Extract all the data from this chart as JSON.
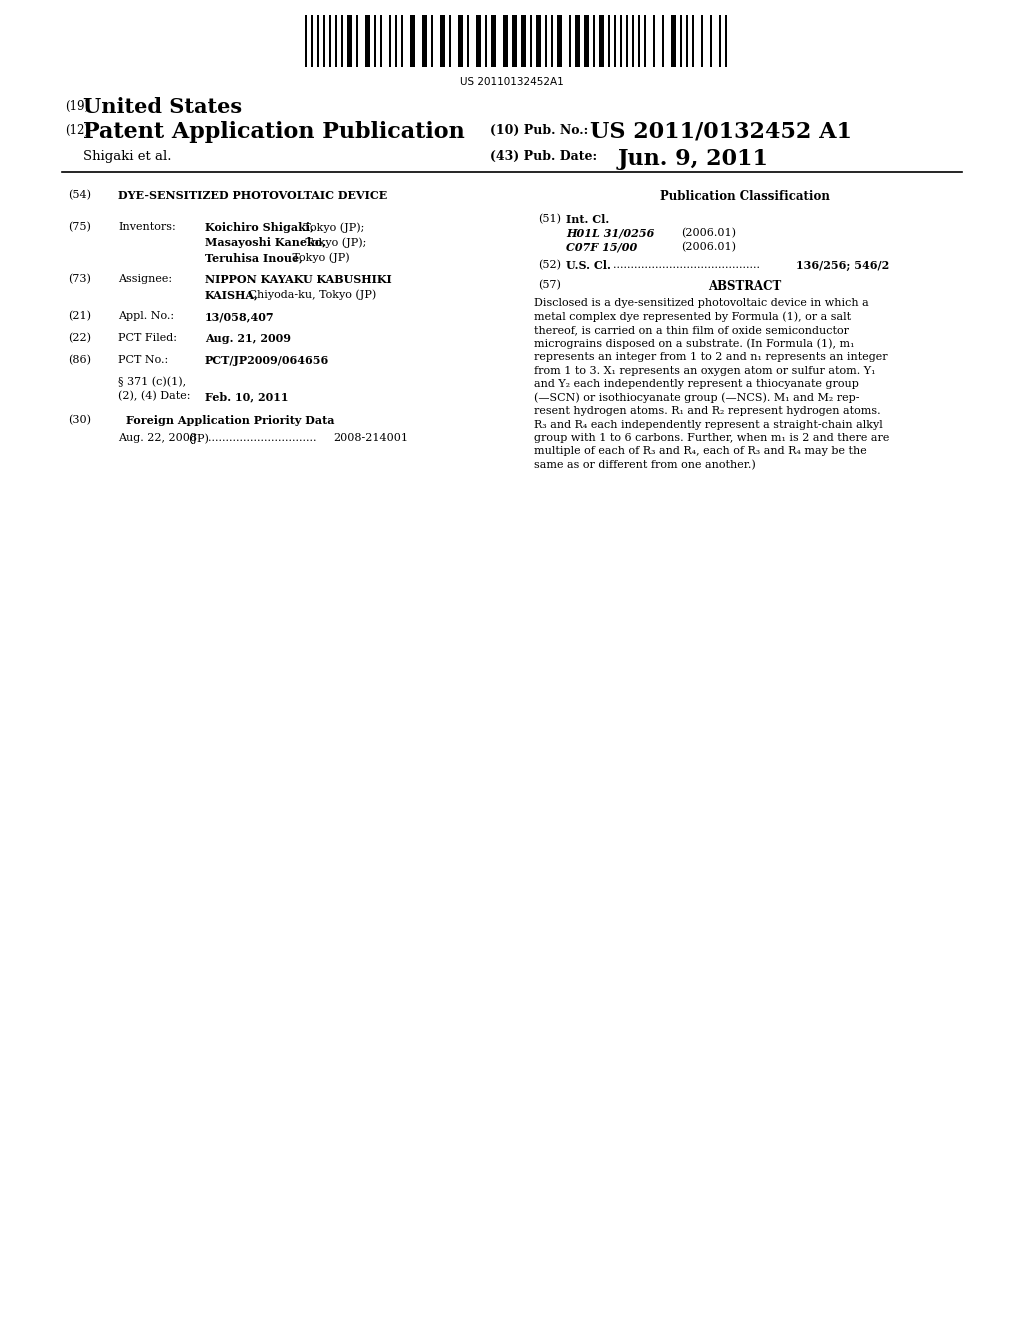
{
  "background_color": "#ffffff",
  "barcode_text": "US 20110132452A1",
  "header": {
    "country_label": "(19)",
    "country": "United States",
    "type_label": "(12)",
    "type": "Patent Application Publication",
    "pub_no_label": "(10) Pub. No.:",
    "pub_no": "US 2011/0132452 A1",
    "author": "Shigaki et al.",
    "pub_date_label": "(43) Pub. Date:",
    "pub_date": "Jun. 9, 2011"
  },
  "left_column": {
    "title_label": "(54)",
    "title": "DYE-SENSITIZED PHOTOVOLTAIC DEVICE",
    "inventors_label": "(75)",
    "inventors_key": "Inventors:",
    "inv_line1_bold": "Koichiro Shigaki,",
    "inv_line1_normal": " Tokyo (JP);",
    "inv_line2_bold": "Masayoshi Kaneko,",
    "inv_line2_normal": " Tokyo (JP);",
    "inv_line3_bold": "Teruhisa Inoue,",
    "inv_line3_normal": " Tokyo (JP)",
    "assignee_label": "(73)",
    "assignee_key": "Assignee:",
    "assignee_val_bold": "NIPPON KAYAKU KABUSHIKI",
    "assignee_val_bold2": "KAISHA,",
    "assignee_val_normal2": " Chiyoda-ku, Tokyo (JP)",
    "appl_label": "(21)",
    "appl_key": "Appl. No.:",
    "appl_val": "13/058,407",
    "pct_filed_label": "(22)",
    "pct_filed_key": "PCT Filed:",
    "pct_filed_val": "Aug. 21, 2009",
    "pct_no_label": "(86)",
    "pct_no_key": "PCT No.:",
    "pct_no_val": "PCT/JP2009/064656",
    "section_371_line1": "§ 371 (c)(1),",
    "section_371_line2": "(2), (4) Date:",
    "section_371_val": "Feb. 10, 2011",
    "foreign_label": "(30)",
    "foreign_title": "Foreign Application Priority Data",
    "foreign_date": "Aug. 22, 2008",
    "foreign_country": "(JP)",
    "foreign_dots": "...............................",
    "foreign_no": "2008-214001"
  },
  "right_column": {
    "pub_class_title": "Publication Classification",
    "int_cl_label": "(51)",
    "int_cl_key": "Int. Cl.",
    "int_cl_1_code": "H01L 31/0256",
    "int_cl_1_date": "(2006.01)",
    "int_cl_2_code": "C07F 15/00",
    "int_cl_2_date": "(2006.01)",
    "us_cl_label": "(52)",
    "us_cl_key": "U.S. Cl.",
    "us_cl_dots": "..........................................",
    "us_cl_val": "136/256; 546/2",
    "abstract_label": "(57)",
    "abstract_title": "ABSTRACT",
    "abstract_lines": [
      "Disclosed is a dye-sensitized photovoltaic device in which a",
      "metal complex dye represented by Formula (1), or a salt",
      "thereof, is carried on a thin film of oxide semiconductor",
      "micrograins disposed on a substrate. (In Formula (1), m₁",
      "represents an integer from 1 to 2 and n₁ represents an integer",
      "from 1 to 3. X₁ represents an oxygen atom or sulfur atom. Y₁",
      "and Y₂ each independently represent a thiocyanate group",
      "(—SCN) or isothiocyanate group (—NCS). M₁ and M₂ rep­",
      "resent hydrogen atoms. R₁ and R₂ represent hydrogen atoms.",
      "R₃ and R₄ each independently represent a straight-chain alkyl",
      "group with 1 to 6 carbons. Further, when m₁ is 2 and there are",
      "multiple of each of R₃ and R₄, each of R₃ and R₄ may be the",
      "same as or different from one another.)"
    ]
  }
}
